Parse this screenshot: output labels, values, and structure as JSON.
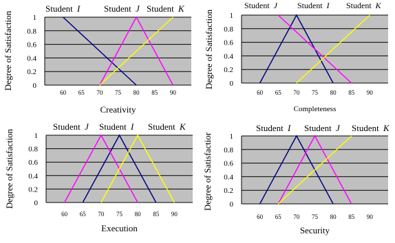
{
  "chart_data": [
    {
      "type": "line",
      "xlabel": "Creativity",
      "ylabel": "Degree of Satisfaction",
      "xlim": [
        55,
        95
      ],
      "ylim": [
        0,
        1
      ],
      "xticks": [
        "60",
        "65",
        "70",
        "75",
        "80",
        "85",
        "90"
      ],
      "yticks": [
        "0",
        "0.2",
        "0.4",
        "0.6",
        "0.8",
        "1"
      ],
      "grid": true,
      "legend_labels": [
        {
          "prefix": "Student ",
          "letter": "I"
        },
        {
          "prefix": "Student ",
          "letter": "J"
        },
        {
          "prefix": "Student ",
          "letter": "K"
        }
      ],
      "series": [
        {
          "name": "Student I",
          "color": "#000080",
          "x": [
            60,
            80
          ],
          "y": [
            1,
            0
          ]
        },
        {
          "name": "Student J",
          "color": "#ff00ff",
          "x": [
            70,
            80,
            90
          ],
          "y": [
            0,
            1,
            0
          ]
        },
        {
          "name": "Student K",
          "color": "#ffff00",
          "x": [
            70,
            90
          ],
          "y": [
            0,
            1
          ]
        }
      ]
    },
    {
      "type": "line",
      "xlabel": "Completeness",
      "ylabel": "Degree of Satisfaction",
      "xlim": [
        55,
        95
      ],
      "ylim": [
        0,
        1
      ],
      "xticks": [
        "60",
        "65",
        "70",
        "75",
        "80",
        "85",
        "90"
      ],
      "yticks": [
        "0",
        "0.2",
        "0.4",
        "0.6",
        "0.8",
        "1"
      ],
      "grid": true,
      "legend_labels": [
        {
          "prefix": "Student ",
          "letter": "J"
        },
        {
          "prefix": "Student ",
          "letter": "I"
        },
        {
          "prefix": "Student ",
          "letter": "K"
        }
      ],
      "series": [
        {
          "name": "Student I",
          "color": "#000080",
          "x": [
            60,
            70,
            80
          ],
          "y": [
            0,
            1,
            0
          ]
        },
        {
          "name": "Student J",
          "color": "#ff00ff",
          "x": [
            65,
            85
          ],
          "y": [
            1,
            0
          ]
        },
        {
          "name": "Student K",
          "color": "#ffff00",
          "x": [
            70,
            90
          ],
          "y": [
            0,
            1
          ]
        }
      ]
    },
    {
      "type": "line",
      "xlabel": "Execution",
      "ylabel": "Degree of Satisfaction",
      "xlim": [
        55,
        95
      ],
      "ylim": [
        0,
        1
      ],
      "xticks": [
        "60",
        "65",
        "70",
        "75",
        "80",
        "85",
        "90"
      ],
      "yticks": [
        "0",
        "0.2",
        "0.4",
        "0.6",
        "0.8",
        "1"
      ],
      "grid": true,
      "legend_labels": [
        {
          "prefix": "Student ",
          "letter": "J"
        },
        {
          "prefix": "Student ",
          "letter": "I"
        },
        {
          "prefix": "Student ",
          "letter": "K"
        }
      ],
      "series": [
        {
          "name": "Student I",
          "color": "#000080",
          "x": [
            65,
            75,
            85
          ],
          "y": [
            0,
            1,
            0
          ]
        },
        {
          "name": "Student J",
          "color": "#ff00ff",
          "x": [
            60,
            70,
            80
          ],
          "y": [
            0,
            1,
            0
          ]
        },
        {
          "name": "Student K",
          "color": "#ffff00",
          "x": [
            70,
            80,
            90
          ],
          "y": [
            0,
            1,
            0
          ]
        }
      ]
    },
    {
      "type": "line",
      "xlabel": "Security",
      "ylabel": "Degree of Satisfactior",
      "xlim": [
        55,
        95
      ],
      "ylim": [
        0,
        1
      ],
      "xticks": [
        "60",
        "65",
        "70",
        "75",
        "80",
        "85",
        "90"
      ],
      "yticks": [
        "0",
        "0.2",
        "0.4",
        "0.6",
        "0.8",
        "1"
      ],
      "grid": true,
      "legend_labels": [
        {
          "prefix": "Student ",
          "letter": "I"
        },
        {
          "prefix": "Student ",
          "letter": "J"
        },
        {
          "prefix": "Student ",
          "letter": "K"
        }
      ],
      "series": [
        {
          "name": "Student I",
          "color": "#000080",
          "x": [
            60,
            70,
            80
          ],
          "y": [
            0,
            1,
            0
          ]
        },
        {
          "name": "Student J",
          "color": "#ff00ff",
          "x": [
            65,
            75,
            85
          ],
          "y": [
            0,
            1,
            0
          ]
        },
        {
          "name": "Student K",
          "color": "#ffff00",
          "x": [
            65,
            85
          ],
          "y": [
            0,
            1
          ]
        }
      ]
    }
  ],
  "colors": {
    "plot_background": "#c0c0c0",
    "gridline": "#000000"
  }
}
